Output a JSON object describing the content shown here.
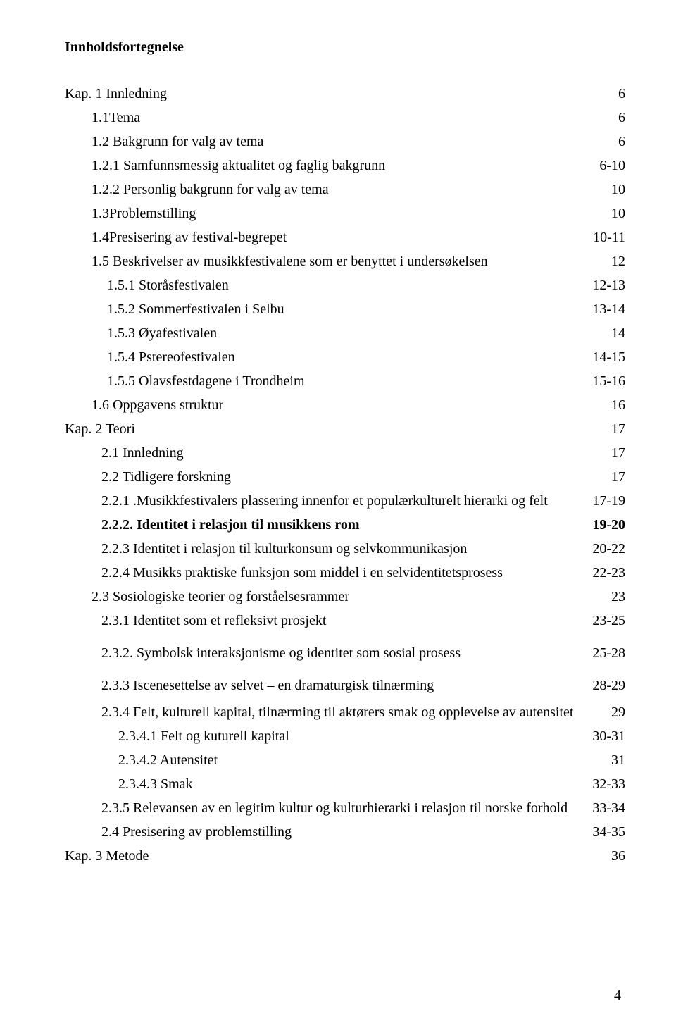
{
  "title": "Innholdsfortegnelse",
  "pageNumber": "4",
  "entries": [
    {
      "label": "Kap. 1 Innledning",
      "page": "6",
      "indent": "indent-0",
      "bold": false,
      "gap": ""
    },
    {
      "label": "1.1Tema",
      "page": "6",
      "indent": "indent-1",
      "bold": false,
      "gap": ""
    },
    {
      "label": "1.2 Bakgrunn for valg av tema",
      "page": "6",
      "indent": "indent-1",
      "bold": false,
      "gap": ""
    },
    {
      "label": "1.2.1 Samfunnsmessig aktualitet og faglig bakgrunn",
      "page": "6-10",
      "indent": "indent-1",
      "bold": false,
      "gap": ""
    },
    {
      "label": "1.2.2 Personlig bakgrunn for valg av tema",
      "page": "10",
      "indent": "indent-1",
      "bold": false,
      "gap": ""
    },
    {
      "label": "1.3Problemstilling",
      "page": "10",
      "indent": "indent-1",
      "bold": false,
      "gap": ""
    },
    {
      "label": "1.4Presisering av festival-begrepet",
      "page": "10-11",
      "indent": "indent-1",
      "bold": false,
      "gap": ""
    },
    {
      "label": "1.5 Beskrivelser av musikkfestivalene som er benyttet i undersøkelsen",
      "page": "12",
      "indent": "indent-1",
      "bold": false,
      "gap": ""
    },
    {
      "label": "1.5.1  Storåsfestivalen",
      "page": "12-13",
      "indent": "indent-2",
      "bold": false,
      "gap": ""
    },
    {
      "label": "1.5.2  Sommerfestivalen i Selbu",
      "page": "13-14",
      "indent": "indent-2",
      "bold": false,
      "gap": ""
    },
    {
      "label": "1.5.3  Øyafestivalen",
      "page": "14",
      "indent": "indent-2",
      "bold": false,
      "gap": ""
    },
    {
      "label": "1.5.4  Pstereofestivalen",
      "page": "14-15",
      "indent": "indent-2",
      "bold": false,
      "gap": ""
    },
    {
      "label": "1.5.5  Olavsfestdagene i Trondheim",
      "page": "15-16",
      "indent": "indent-2",
      "bold": false,
      "gap": ""
    },
    {
      "label": "1.6   Oppgavens struktur",
      "page": "16",
      "indent": "indent-1",
      "bold": false,
      "gap": ""
    },
    {
      "label": "Kap. 2    Teori",
      "page": "17",
      "indent": "indent-0",
      "bold": false,
      "gap": ""
    },
    {
      "label": "2.1 Innledning",
      "page": "17",
      "indent": "indent-2b",
      "bold": false,
      "gap": ""
    },
    {
      "label": "2.2 Tidligere forskning",
      "page": "17",
      "indent": "indent-2b",
      "bold": false,
      "gap": ""
    },
    {
      "label": "2.2.1 .Musikkfestivalers plassering innenfor et populærkulturelt hierarki og felt",
      "page": "17-19",
      "indent": "indent-2b",
      "bold": false,
      "gap": ""
    },
    {
      "label": "2.2.2. Identitet i relasjon til musikkens rom",
      "page": "19-20",
      "indent": "indent-2b",
      "bold": true,
      "gap": ""
    },
    {
      "label": "2.2.3   Identitet i relasjon til kulturkonsum og selvkommunikasjon",
      "page": "20-22",
      "indent": "indent-2b",
      "bold": false,
      "gap": ""
    },
    {
      "label": "2.2.4 Musikks praktiske funksjon som middel i en selvidentitetsprosess",
      "page": " 22-23",
      "indent": "indent-2b",
      "bold": false,
      "gap": ""
    },
    {
      "label": "2.3 Sosiologiske teorier og forståelsesrammer",
      "page": "23",
      "indent": "indent-1",
      "bold": false,
      "gap": ""
    },
    {
      "label": "2.3.1 Identitet som et refleksivt prosjekt",
      "page": "23-25",
      "indent": "indent-2b",
      "bold": false,
      "gap": ""
    },
    {
      "label": "2.3.2. Symbolsk interaksjonisme og identitet som sosial prosess",
      "page": "25-28",
      "indent": "indent-2b",
      "bold": false,
      "gap": "gap-md"
    },
    {
      "label": "2.3.3 Iscenesettelse av selvet – en dramaturgisk tilnærming",
      "page": "28-29",
      "indent": "indent-2b",
      "bold": false,
      "gap": "gap-md"
    },
    {
      "label": "2.3.4 Felt, kulturell kapital, tilnærming til aktørers smak og opplevelse av autensitet",
      "page": "29",
      "indent": "indent-2b",
      "bold": false,
      "gap": "gap-sm"
    },
    {
      "label": "2.3.4.1 Felt og kuturell kapital",
      "page": "30-31",
      "indent": "indent-3",
      "bold": false,
      "gap": ""
    },
    {
      "label": "2.3.4.2 Autensitet",
      "page": "31",
      "indent": "indent-3",
      "bold": false,
      "gap": ""
    },
    {
      "label": "2.3.4.3 Smak",
      "page": "32-33",
      "indent": "indent-3",
      "bold": false,
      "gap": ""
    },
    {
      "label": "2.3.5 Relevansen av en legitim kultur og kulturhierarki i relasjon til norske forhold",
      "page": "33-34",
      "indent": "indent-2b",
      "bold": false,
      "gap": ""
    },
    {
      "label": "2.4   Presisering av problemstilling",
      "page": "34-35",
      "indent": "indent-2b",
      "bold": false,
      "gap": ""
    },
    {
      "label": "Kap. 3 Metode",
      "page": "36",
      "indent": "indent-0",
      "bold": false,
      "gap": ""
    }
  ]
}
